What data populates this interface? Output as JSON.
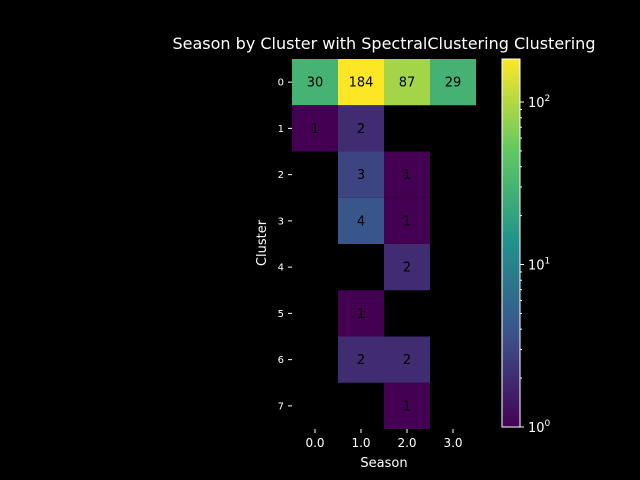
{
  "chart_data": {
    "type": "heatmap",
    "title": "Season by Cluster with SpectralClustering Clustering",
    "xlabel": "Season",
    "ylabel": "Cluster",
    "x_ticks": [
      "0.0",
      "1.0",
      "2.0",
      "3.0"
    ],
    "y_ticks": [
      "0",
      "1",
      "2",
      "3",
      "4",
      "5",
      "6",
      "7"
    ],
    "values": [
      [
        30,
        184,
        87,
        29
      ],
      [
        1,
        2,
        null,
        null
      ],
      [
        null,
        3,
        1,
        null
      ],
      [
        null,
        4,
        1,
        null
      ],
      [
        null,
        null,
        2,
        null
      ],
      [
        null,
        1,
        null,
        null
      ],
      [
        null,
        2,
        2,
        null
      ],
      [
        null,
        null,
        1,
        null
      ]
    ],
    "colorbar": {
      "scale": "log",
      "min": 1,
      "max": 184,
      "ticks": [
        1,
        10,
        100
      ],
      "colormap": "viridis"
    },
    "background": "#000000",
    "text_color": "#ffffff"
  }
}
